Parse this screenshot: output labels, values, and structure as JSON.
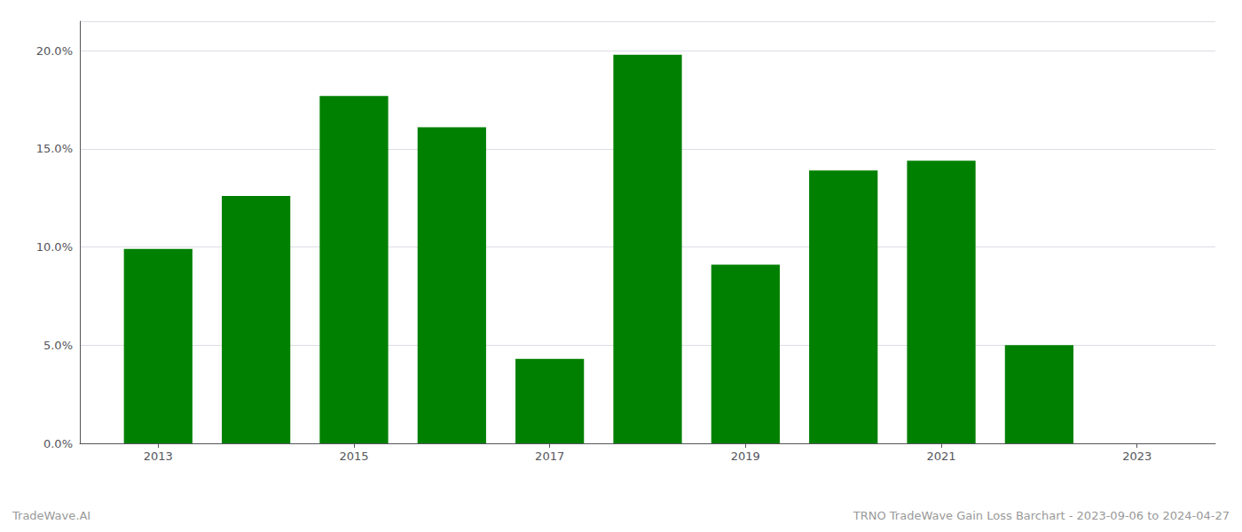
{
  "chart_data": {
    "type": "bar",
    "x": [
      2013,
      2014,
      2015,
      2016,
      2017,
      2018,
      2019,
      2020,
      2021,
      2022
    ],
    "values": [
      0.099,
      0.126,
      0.177,
      0.161,
      0.043,
      0.198,
      0.091,
      0.139,
      0.144,
      0.05
    ],
    "color": "#008000",
    "xlim": [
      2012.2,
      2023.8
    ],
    "xticks": [
      2013,
      2015,
      2017,
      2019,
      2021,
      2023
    ],
    "ylim": [
      0,
      0.215
    ],
    "yticks": [
      {
        "value": 0.0,
        "label": "0.0%"
      },
      {
        "value": 0.05,
        "label": "5.0%"
      },
      {
        "value": 0.1,
        "label": "10.0%"
      },
      {
        "value": 0.15,
        "label": "15.0%"
      },
      {
        "value": 0.2,
        "label": "20.0%"
      }
    ],
    "grid": true,
    "annotations": [
      "TradeWave.AI",
      "TRNO TradeWave Gain Loss Barchart - 2023-09-06 to 2024-04-27"
    ]
  }
}
